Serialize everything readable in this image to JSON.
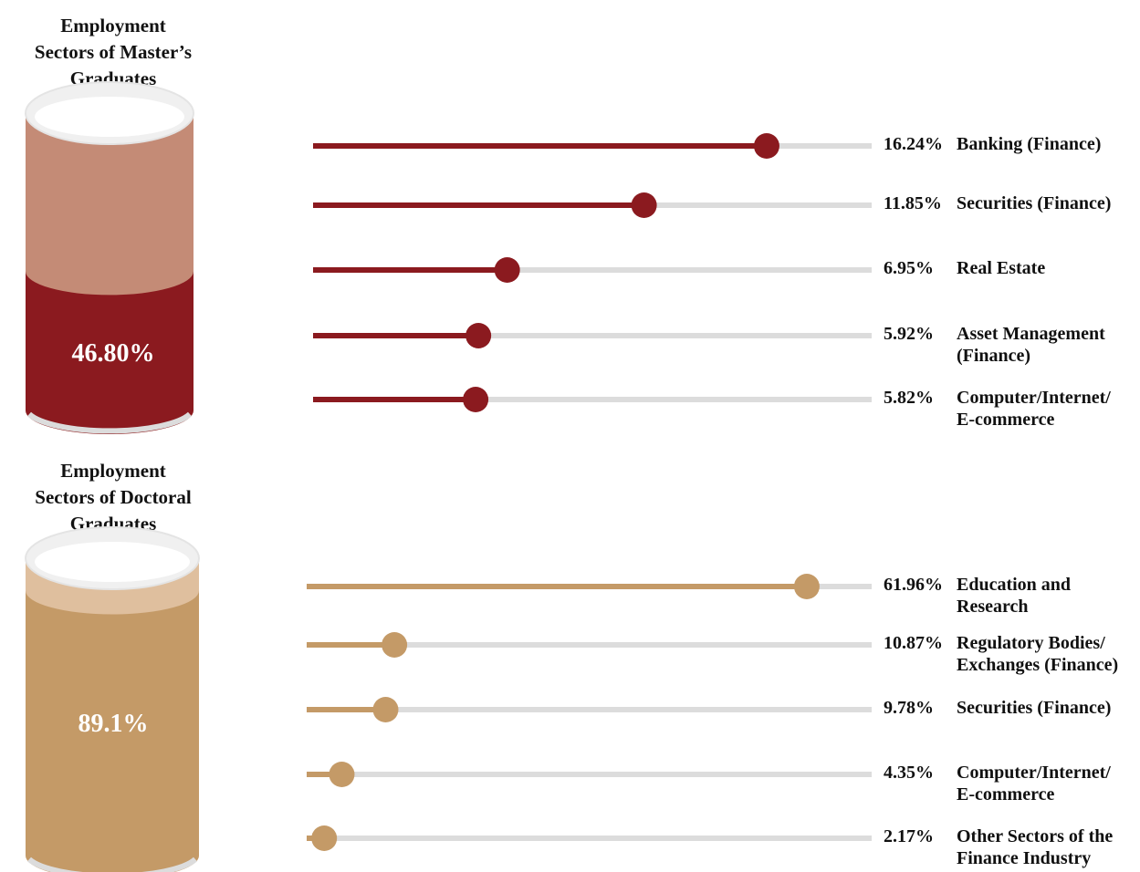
{
  "chart_data": [
    {
      "type": "bar",
      "title_lines": [
        "Employment",
        "Sectors of Master’s",
        "Graduates"
      ],
      "cylinder_value": "46.80%",
      "cylinder_fill": 46.8,
      "track_max": 20,
      "colors": {
        "accent": "#8b1a1f",
        "light": "#c48b76",
        "track": "#dcdcdc",
        "cap": "#f0f0f0"
      },
      "items": [
        {
          "value": 16.24,
          "pct": "16.24%",
          "label": "Banking (Finance)"
        },
        {
          "value": 11.85,
          "pct": "11.85%",
          "label": "Securities (Finance)"
        },
        {
          "value": 6.95,
          "pct": "6.95%",
          "label": "Real Estate"
        },
        {
          "value": 5.92,
          "pct": "5.92%",
          "label": "Asset Management\n(Finance)"
        },
        {
          "value": 5.82,
          "pct": "5.82%",
          "label": "Computer/Internet/\nE-commerce"
        }
      ]
    },
    {
      "type": "bar",
      "title_lines": [
        "Employment",
        "Sectors of Doctoral",
        "Graduates"
      ],
      "cylinder_value": "89.1%",
      "cylinder_fill": 89.1,
      "track_max": 70,
      "colors": {
        "accent": "#c49a67",
        "light": "#dfbf9e",
        "track": "#dcdcdc",
        "cap": "#f0f0f0"
      },
      "items": [
        {
          "value": 61.96,
          "pct": "61.96%",
          "label": "Education and\nResearch"
        },
        {
          "value": 10.87,
          "pct": "10.87%",
          "label": "Regulatory Bodies/\nExchanges (Finance)"
        },
        {
          "value": 9.78,
          "pct": "9.78%",
          "label": "Securities (Finance)"
        },
        {
          "value": 4.35,
          "pct": "4.35%",
          "label": "Computer/Internet/\nE-commerce"
        },
        {
          "value": 2.17,
          "pct": "2.17%",
          "label": "Other Sectors of the\nFinance Industry"
        }
      ]
    }
  ]
}
